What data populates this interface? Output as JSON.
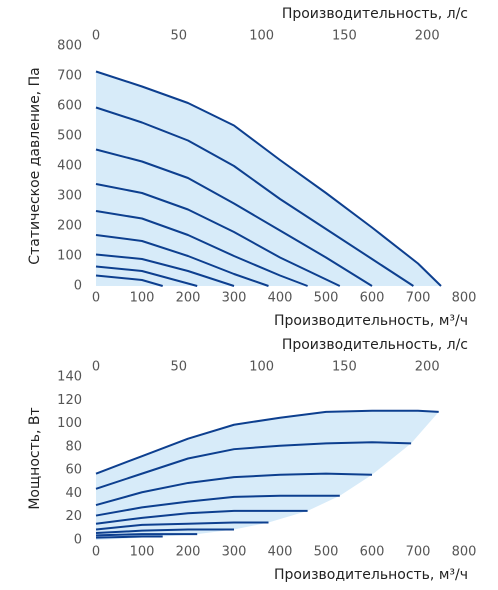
{
  "chart_data": [
    {
      "type": "line",
      "x2label": "Производительность, л/с",
      "xlabel": "Производительность, м³/ч",
      "ylabel": "Статическое давление, Па",
      "xlim": [
        0,
        800
      ],
      "xticks": [
        0,
        100,
        200,
        300,
        400,
        500,
        600,
        700,
        800
      ],
      "x2lim": [
        0,
        222.22
      ],
      "x2ticks": [
        0,
        50,
        100,
        150,
        200
      ],
      "ylim": [
        0,
        800
      ],
      "yticks": [
        0,
        100,
        200,
        300,
        400,
        500,
        600,
        700,
        800
      ],
      "area_color": "#d7ebf9",
      "series": [
        {
          "color": "#0d3f8f",
          "x": [
            0,
            100,
            200,
            300,
            400,
            500,
            600,
            700,
            750
          ],
          "values": [
            715,
            665,
            610,
            535,
            420,
            310,
            195,
            75,
            0
          ]
        },
        {
          "color": "#0d3f8f",
          "x": [
            0,
            100,
            200,
            300,
            400,
            500,
            600,
            690
          ],
          "values": [
            595,
            545,
            485,
            400,
            290,
            190,
            90,
            0
          ]
        },
        {
          "color": "#0d3f8f",
          "x": [
            0,
            100,
            200,
            300,
            400,
            500,
            600
          ],
          "values": [
            455,
            415,
            360,
            275,
            185,
            95,
            0
          ]
        },
        {
          "color": "#0d3f8f",
          "x": [
            0,
            100,
            200,
            300,
            400,
            530
          ],
          "values": [
            340,
            310,
            255,
            180,
            95,
            0
          ]
        },
        {
          "color": "#0d3f8f",
          "x": [
            0,
            100,
            200,
            300,
            400,
            460
          ],
          "values": [
            250,
            225,
            170,
            100,
            35,
            0
          ]
        },
        {
          "color": "#0d3f8f",
          "x": [
            0,
            100,
            200,
            300,
            375
          ],
          "values": [
            170,
            150,
            100,
            40,
            0
          ]
        },
        {
          "color": "#0d3f8f",
          "x": [
            0,
            100,
            200,
            300
          ],
          "values": [
            105,
            90,
            50,
            0
          ]
        },
        {
          "color": "#0d3f8f",
          "x": [
            0,
            100,
            220
          ],
          "values": [
            65,
            50,
            0
          ]
        },
        {
          "color": "#0d3f8f",
          "x": [
            0,
            100,
            145
          ],
          "values": [
            35,
            20,
            0
          ]
        }
      ]
    },
    {
      "type": "line",
      "x2label": "Производительность, л/с",
      "xlabel": "Производительность, м³/ч",
      "ylabel": "Мощность, Вт",
      "xlim": [
        0,
        800
      ],
      "xticks": [
        0,
        100,
        200,
        300,
        400,
        500,
        600,
        700,
        800
      ],
      "x2lim": [
        0,
        222.22
      ],
      "x2ticks": [
        0,
        50,
        100,
        150,
        200
      ],
      "ylim": [
        0,
        140
      ],
      "yticks": [
        0,
        20,
        40,
        60,
        80,
        100,
        120,
        140
      ],
      "area_color": "#d7ebf9",
      "series": [
        {
          "color": "#0d3f8f",
          "x": [
            0,
            100,
            200,
            300,
            400,
            500,
            600,
            700,
            745
          ],
          "values": [
            57,
            72,
            87,
            99,
            105,
            110,
            111,
            111,
            110
          ]
        },
        {
          "color": "#0d3f8f",
          "x": [
            0,
            100,
            200,
            300,
            400,
            500,
            600,
            685
          ],
          "values": [
            44,
            57,
            70,
            78,
            81,
            83,
            84,
            83
          ]
        },
        {
          "color": "#0d3f8f",
          "x": [
            0,
            100,
            200,
            300,
            400,
            500,
            600
          ],
          "values": [
            30,
            41,
            49,
            54,
            56,
            57,
            56
          ]
        },
        {
          "color": "#0d3f8f",
          "x": [
            0,
            100,
            200,
            300,
            400,
            530
          ],
          "values": [
            21,
            28,
            33,
            37,
            38,
            38
          ]
        },
        {
          "color": "#0d3f8f",
          "x": [
            0,
            100,
            200,
            300,
            400,
            460
          ],
          "values": [
            14,
            19,
            23,
            25,
            25,
            25
          ]
        },
        {
          "color": "#0d3f8f",
          "x": [
            0,
            100,
            200,
            300,
            375
          ],
          "values": [
            9,
            13,
            14,
            15,
            15
          ]
        },
        {
          "color": "#0d3f8f",
          "x": [
            0,
            100,
            200,
            300
          ],
          "values": [
            6,
            8,
            9,
            9
          ]
        },
        {
          "color": "#0d3f8f",
          "x": [
            0,
            100,
            220
          ],
          "values": [
            4,
            5,
            5
          ]
        },
        {
          "color": "#0d3f8f",
          "x": [
            0,
            100,
            145
          ],
          "values": [
            2,
            3,
            3
          ]
        }
      ]
    }
  ]
}
